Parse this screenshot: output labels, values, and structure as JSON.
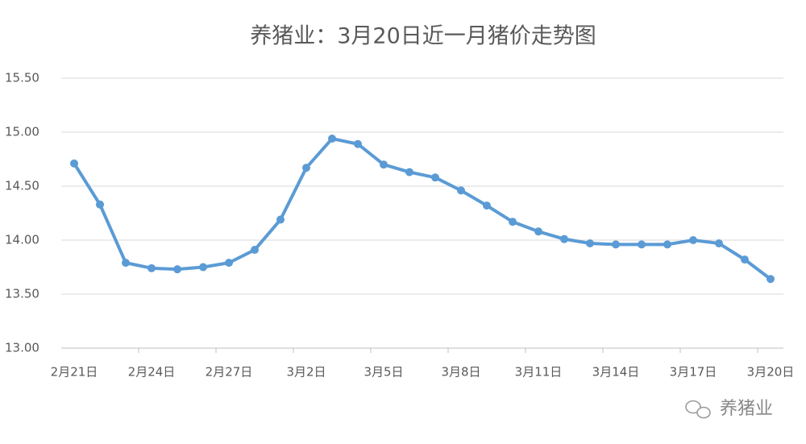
{
  "chart_data": {
    "type": "line",
    "title": "养猪业：3月20日近一月猪价走势图",
    "categories": [
      "2月21日",
      null,
      null,
      "2月24日",
      null,
      null,
      "2月27日",
      null,
      null,
      "3月2日",
      null,
      null,
      "3月5日",
      null,
      null,
      "3月8日",
      null,
      null,
      "3月11日",
      null,
      null,
      "3月14日",
      null,
      null,
      "3月17日",
      null,
      null,
      "3月20日"
    ],
    "values": [
      14.71,
      14.33,
      13.79,
      13.74,
      13.73,
      13.75,
      13.79,
      13.91,
      14.19,
      14.67,
      14.94,
      14.89,
      14.7,
      14.63,
      14.58,
      14.46,
      14.32,
      14.17,
      14.08,
      14.01,
      13.97,
      13.96,
      13.96,
      13.96,
      14.0,
      13.97,
      13.82,
      13.64
    ],
    "color": "#5b9bd5",
    "ylim": [
      13,
      15.5
    ],
    "yticks": [
      {
        "value": 13,
        "label": "13.00"
      },
      {
        "value": 13.5,
        "label": "13.50"
      },
      {
        "value": 14,
        "label": "14.00"
      },
      {
        "value": 14.5,
        "label": "14.50"
      },
      {
        "value": 15,
        "label": "15.00"
      },
      {
        "value": 15.5,
        "label": "15.50"
      }
    ],
    "grid": true,
    "annotations": [
      "养猪业"
    ]
  }
}
